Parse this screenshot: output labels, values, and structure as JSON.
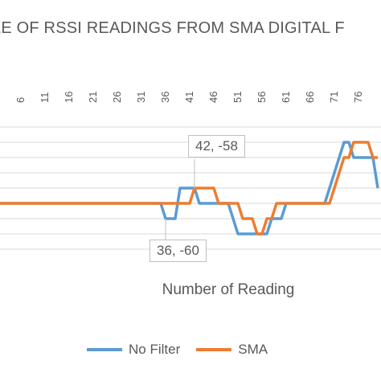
{
  "chart_data": {
    "type": "line",
    "title": "LE OF RSSI READINGS FROM SMA DIGITAL F",
    "xlabel": "Number of Reading",
    "ylabel": "",
    "x_tick_labels": [
      "6",
      "11",
      "16",
      "21",
      "26",
      "31",
      "36",
      "41",
      "46",
      "51",
      "56",
      "61",
      "66",
      "71",
      "76"
    ],
    "ylim": [
      -62,
      -54
    ],
    "grid": true,
    "legend_position": "bottom",
    "series": [
      {
        "name": "No Filter",
        "color": "#5b9bd5",
        "x": [
          1,
          2,
          3,
          4,
          5,
          6,
          7,
          8,
          9,
          10,
          11,
          12,
          13,
          14,
          15,
          16,
          17,
          18,
          19,
          20,
          21,
          22,
          23,
          24,
          25,
          26,
          27,
          28,
          29,
          30,
          31,
          32,
          33,
          34,
          35,
          36,
          37,
          38,
          39,
          40,
          41,
          42,
          43,
          44,
          45,
          46,
          47,
          48,
          49,
          50,
          51,
          52,
          53,
          54,
          55,
          56,
          57,
          58,
          59,
          60,
          61,
          62,
          63,
          64,
          65,
          66,
          67,
          68,
          69,
          70,
          71,
          72,
          73,
          74,
          75,
          76,
          77,
          78,
          79,
          80
        ],
        "y": [
          -59,
          -59,
          -59,
          -59,
          -59,
          -59,
          -59,
          -59,
          -59,
          -59,
          -59,
          -59,
          -59,
          -59,
          -59,
          -59,
          -59,
          -59,
          -59,
          -59,
          -59,
          -59,
          -59,
          -59,
          -59,
          -59,
          -59,
          -59,
          -59,
          -59,
          -59,
          -59,
          -59,
          -59,
          -59,
          -60,
          -60,
          -60,
          -58,
          -58,
          -58,
          -58,
          -59,
          -59,
          -59,
          -59,
          -59,
          -59,
          -59,
          -60,
          -61,
          -61,
          -61,
          -61,
          -61,
          -61,
          -61,
          -60,
          -60,
          -60,
          -59,
          -59,
          -59,
          -59,
          -59,
          -59,
          -59,
          -59,
          -59,
          -58,
          -57,
          -56,
          -55,
          -55,
          -56,
          -56,
          -56,
          -56,
          -56,
          -58
        ]
      },
      {
        "name": "SMA",
        "color": "#ed7d31",
        "x": [
          1,
          2,
          3,
          4,
          5,
          6,
          7,
          8,
          9,
          10,
          11,
          12,
          13,
          14,
          15,
          16,
          17,
          18,
          19,
          20,
          21,
          22,
          23,
          24,
          25,
          26,
          27,
          28,
          29,
          30,
          31,
          32,
          33,
          34,
          35,
          36,
          37,
          38,
          39,
          40,
          41,
          42,
          43,
          44,
          45,
          46,
          47,
          48,
          49,
          50,
          51,
          52,
          53,
          54,
          55,
          56,
          57,
          58,
          59,
          60,
          61,
          62,
          63,
          64,
          65,
          66,
          67,
          68,
          69,
          70,
          71,
          72,
          73,
          74,
          75,
          76,
          77,
          78,
          79,
          80
        ],
        "y": [
          -59,
          -59,
          -59,
          -59,
          -59,
          -59,
          -59,
          -59,
          -59,
          -59,
          -59,
          -59,
          -59,
          -59,
          -59,
          -59,
          -59,
          -59,
          -59,
          -59,
          -59,
          -59,
          -59,
          -59,
          -59,
          -59,
          -59,
          -59,
          -59,
          -59,
          -59,
          -59,
          -59,
          -59,
          -59,
          -59,
          -59,
          -59,
          -59,
          -59,
          -59,
          -58,
          -58,
          -58,
          -58,
          -58,
          -59,
          -59,
          -59,
          -59,
          -59,
          -60,
          -60,
          -60,
          -61,
          -61,
          -60,
          -60,
          -59,
          -59,
          -59,
          -59,
          -59,
          -59,
          -59,
          -59,
          -59,
          -59,
          -59,
          -59,
          -58,
          -57,
          -56,
          -56,
          -55,
          -55,
          -55,
          -55,
          -56,
          -56
        ]
      }
    ],
    "annotations": [
      {
        "label": "42, -58",
        "x": 42,
        "y": -58
      },
      {
        "label": "36, -60",
        "x": 36,
        "y": -60
      }
    ]
  }
}
